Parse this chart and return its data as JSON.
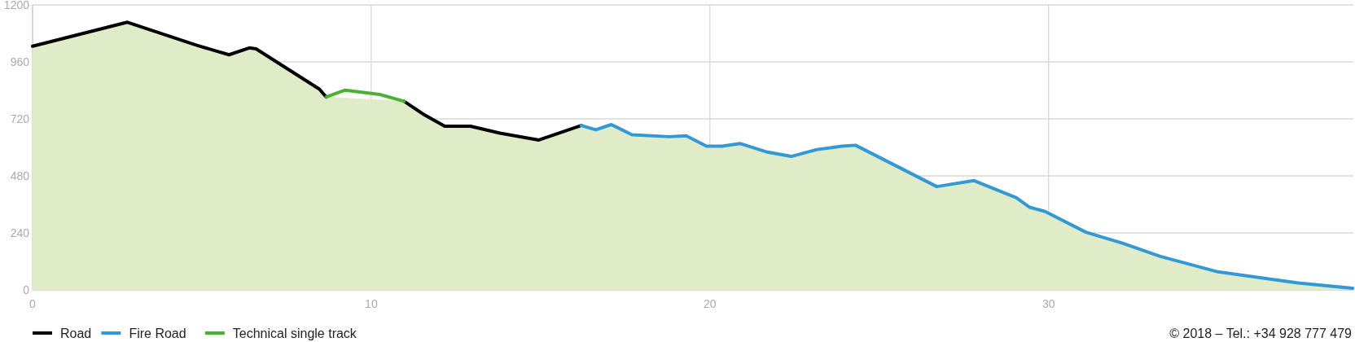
{
  "chart_data": {
    "type": "area",
    "xlim": [
      0,
      39
    ],
    "ylim": [
      0,
      1200
    ],
    "xticks": [
      0,
      10,
      20,
      30
    ],
    "yticks": [
      0,
      240,
      480,
      720,
      960,
      1200
    ],
    "grid": true,
    "legend": "bottom left",
    "line_style": "solid",
    "series": [
      {
        "name": "Road",
        "color": "#000000",
        "x": [
          0,
          2.8,
          4.85,
          5.8,
          6.4,
          6.6,
          8.47,
          8.67,
          null,
          10.97,
          11.58,
          12.17,
          12.93,
          13.8,
          14.95,
          16.2
        ],
        "values": [
          1026,
          1127,
          1030,
          990,
          1019,
          1015,
          845,
          812,
          null,
          794,
          736,
          689,
          689,
          660,
          631,
          692
        ]
      },
      {
        "name": "Fire Road",
        "color": "#3399d4",
        "x": [
          16.2,
          16.63,
          17.09,
          17.7,
          18.8,
          19.3,
          19.9,
          20.36,
          20.9,
          21.7,
          22.4,
          23.16,
          23.9,
          24.3,
          26.7,
          27.8,
          29.05,
          29.44,
          29.9,
          31.1,
          32.2,
          33.3,
          35.0,
          37.37,
          38.98
        ],
        "values": [
          692,
          674,
          696,
          653,
          645,
          649,
          605,
          605,
          616,
          580,
          562,
          591,
          605,
          609,
          435,
          460,
          388,
          348,
          330,
          243,
          196,
          141,
          76,
          29,
          7
        ]
      },
      {
        "type": "line",
        "name": "Technical single track",
        "color": "#4daf35",
        "x": [
          8.67,
          9.23,
          10.25,
          10.97
        ],
        "values": [
          812,
          841,
          823,
          794
        ]
      }
    ],
    "annotations": [
      "© 2018 – Tel.: +34 928 777 479"
    ]
  }
}
